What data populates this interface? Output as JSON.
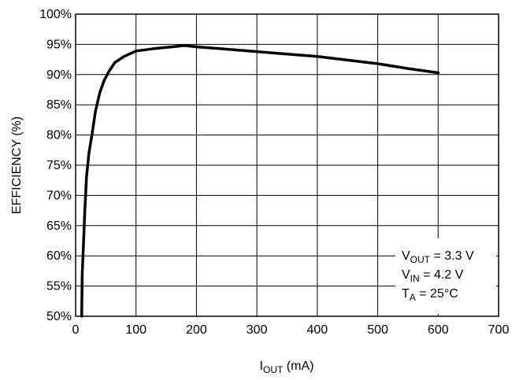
{
  "chart_data": {
    "type": "line",
    "xlabel_main": "I",
    "xlabel_sub": "OUT",
    "xlabel_tail": " (mA)",
    "ylabel": "EFFICIENCY (%)",
    "xlim": [
      0,
      700
    ],
    "ylim": [
      50,
      100
    ],
    "x_ticks": [
      "0",
      "100",
      "200",
      "300",
      "400",
      "500",
      "600",
      "700"
    ],
    "y_ticks": [
      "50%",
      "55%",
      "60%",
      "65%",
      "70%",
      "75%",
      "80%",
      "85%",
      "90%",
      "95%",
      "100%"
    ],
    "grid": true,
    "series": [
      {
        "x": [
          10,
          11,
          13,
          15,
          18,
          22,
          27,
          33,
          40,
          47,
          55,
          65,
          80,
          100,
          130,
          160,
          180,
          200,
          250,
          300,
          350,
          400,
          450,
          500,
          550,
          600
        ],
        "y": [
          50,
          57,
          62,
          67,
          73,
          77,
          80,
          84,
          87,
          89,
          90.5,
          92,
          93,
          93.9,
          94.3,
          94.6,
          94.8,
          94.6,
          94.2,
          93.8,
          93.4,
          93,
          92.4,
          91.8,
          91,
          90.3
        ]
      }
    ],
    "annotation": [
      {
        "main": "V",
        "sub": "OUT",
        "tail": " = 3.3 V"
      },
      {
        "main": "V",
        "sub": "IN",
        "tail": " = 4.2 V"
      },
      {
        "main": "T",
        "sub": "A",
        "tail": " = 25°C"
      }
    ],
    "line_color": "#000000",
    "grid_color": "#000000"
  }
}
